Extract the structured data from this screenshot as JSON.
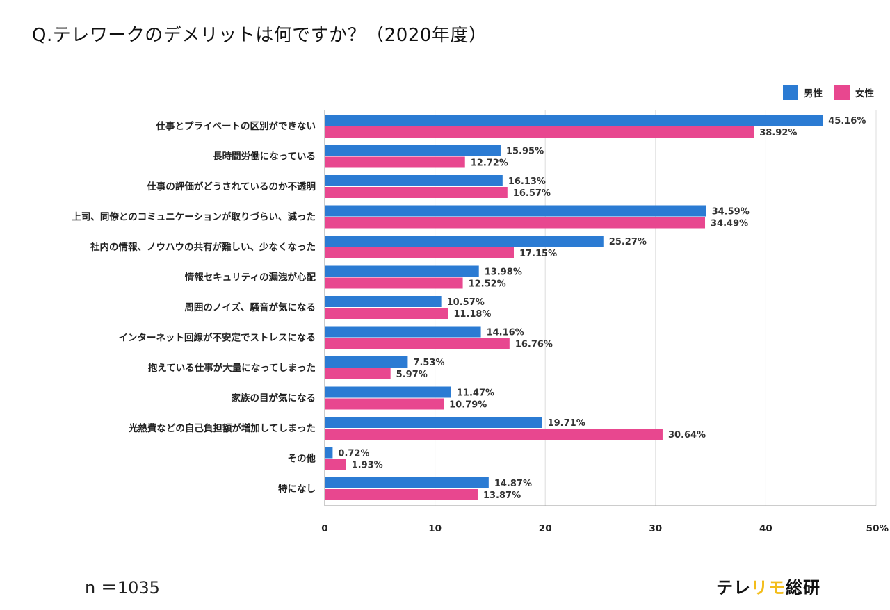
{
  "title": "Q.テレワークのデメリットは何ですか？（2020年度）",
  "note": "n ＝1035",
  "brand": {
    "part1": "テレ",
    "highlight": "リモ",
    "part2": "総研"
  },
  "colors": {
    "male": "#2b7bd3",
    "female": "#e8478f",
    "grid": "#dddddd",
    "brand_highlight": "#f3bd1a"
  },
  "chart_data": {
    "type": "bar",
    "orientation": "horizontal",
    "categories": [
      "仕事とプライベートの区別ができない",
      "長時間労働になっている",
      "仕事の評価がどうされているのか不透明",
      "上司、同僚とのコミュニケーションが取りづらい、減った",
      "社内の情報、ノウハウの共有が難しい、少なくなった",
      "情報セキュリティの漏洩が心配",
      "周囲のノイズ、騒音が気になる",
      "インターネット回線が不安定でストレスになる",
      "抱えている仕事が大量になってしまった",
      "家族の目が気になる",
      "光熱費などの自己負担額が増加してしまった",
      "その他",
      "特になし"
    ],
    "series": [
      {
        "name": "男性",
        "color": "#2b7bd3",
        "values": [
          45.16,
          15.95,
          16.13,
          34.59,
          25.27,
          13.98,
          10.57,
          14.16,
          7.53,
          11.47,
          19.71,
          0.72,
          14.87
        ],
        "labels": [
          "45.16%",
          "15.95%",
          "16.13%",
          "34.59%",
          "25.27%",
          "13.98%",
          "10.57%",
          "14.16%",
          "7.53%",
          "11.47%",
          "19.71%",
          "0.72%",
          "14.87%"
        ]
      },
      {
        "name": "女性",
        "color": "#e8478f",
        "values": [
          38.92,
          12.72,
          16.57,
          34.49,
          17.15,
          12.52,
          11.18,
          16.76,
          5.97,
          10.79,
          30.64,
          1.93,
          13.87
        ],
        "labels": [
          "38.92%",
          "12.72%",
          "16.57%",
          "34.49%",
          "17.15%",
          "12.52%",
          "11.18%",
          "16.76%",
          "5.97%",
          "10.79%",
          "30.64%",
          "1.93%",
          "13.87%"
        ]
      }
    ],
    "xlim": [
      0,
      50
    ],
    "xticks": [
      0,
      10,
      20,
      30,
      40,
      50
    ],
    "xtick_labels": [
      "0",
      "10",
      "20",
      "30",
      "40",
      "50%"
    ],
    "grid": "vertical",
    "legend": "top-right"
  }
}
